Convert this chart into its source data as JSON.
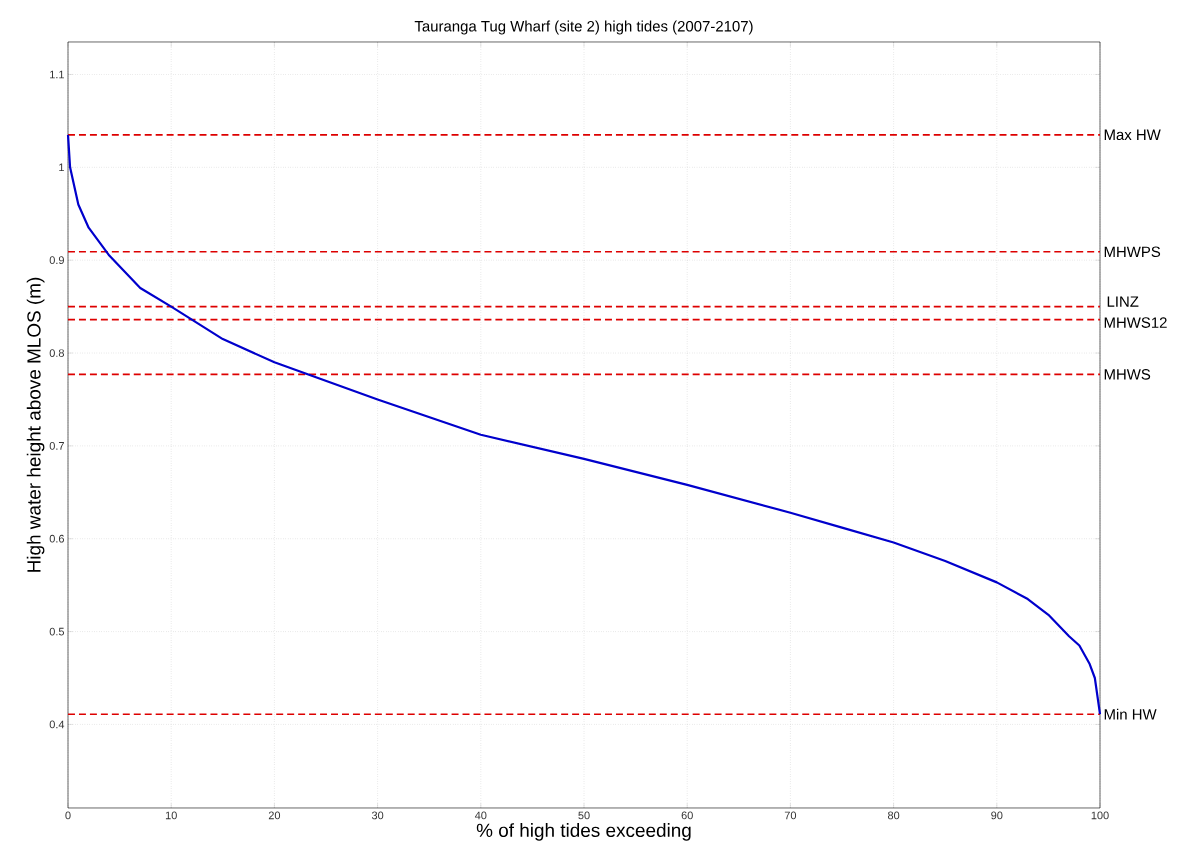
{
  "chart_data": {
    "type": "line",
    "title": "Tauranga Tug Wharf (site 2) high tides (2007-2107)",
    "xlabel": "% of high tides exceeding",
    "ylabel": "High water height above MLOS (m)",
    "x": [
      0,
      0.2,
      1,
      2,
      4,
      7,
      10,
      15,
      20,
      25,
      30,
      40,
      50,
      60,
      70,
      75,
      80,
      85,
      90,
      93,
      95,
      97,
      98,
      99,
      99.5,
      100
    ],
    "series": [
      {
        "color": "#0000cc",
        "values": [
          1.035,
          1.0,
          0.96,
          0.935,
          0.905,
          0.87,
          0.85,
          0.815,
          0.79,
          0.77,
          0.75,
          0.712,
          0.686,
          0.658,
          0.628,
          0.612,
          0.596,
          0.576,
          0.553,
          0.535,
          0.518,
          0.495,
          0.485,
          0.465,
          0.45,
          0.411
        ]
      }
    ],
    "xlim": [
      0,
      100
    ],
    "ylim": [
      0.31,
      1.135
    ],
    "xticks": [
      0,
      10,
      20,
      30,
      40,
      50,
      60,
      70,
      80,
      90,
      100
    ],
    "yticks": [
      0.4,
      0.5,
      0.6,
      0.7,
      0.8,
      0.9,
      {
        "value": 1.0,
        "label": "1"
      },
      1.1
    ],
    "ref_lines": [
      {
        "axis": "y",
        "value": 1.035,
        "label": "Max HW",
        "color": "#dd0000",
        "line_style": "dashed"
      },
      {
        "axis": "y",
        "value": 0.909,
        "label": "MHWPS",
        "color": "#dd0000",
        "line_style": "dashed"
      },
      {
        "axis": "y",
        "value": 0.85,
        "label": "LINZ",
        "color": "#dd0000",
        "line_style": "dashed"
      },
      {
        "axis": "y",
        "value": 0.836,
        "label": "MHWS12",
        "color": "#dd0000",
        "line_style": "dashed"
      },
      {
        "axis": "y",
        "value": 0.777,
        "label": "MHWS",
        "color": "#dd0000",
        "line_style": "dashed"
      },
      {
        "axis": "y",
        "value": 0.411,
        "label": "Min HW",
        "color": "#dd0000",
        "line_style": "dashed"
      }
    ],
    "grid": true,
    "line_style": "solid",
    "marker": "none"
  }
}
